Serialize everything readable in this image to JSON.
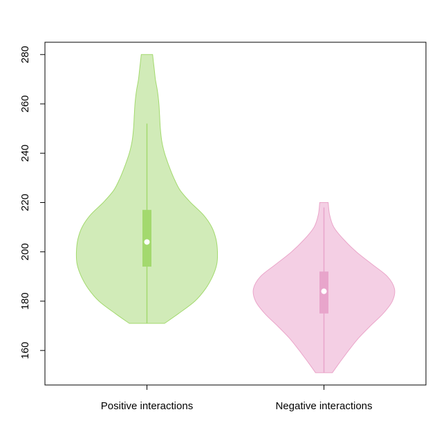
{
  "chart_data": {
    "type": "violin",
    "title": "",
    "xlabel": "",
    "ylabel": "",
    "ylim": [
      146,
      285
    ],
    "yticks": [
      160,
      180,
      200,
      220,
      240,
      260,
      280
    ],
    "yticklabels": [
      "160",
      "180",
      "200",
      "220",
      "240",
      "260",
      "280"
    ],
    "grid": false,
    "legend": "none",
    "series": [
      {
        "category": "Positive interactions",
        "fill": "#d1ebb8",
        "stroke": "#a3d96e",
        "box": "#a3d96e",
        "min": 171,
        "q1": 194,
        "median": 204,
        "q3": 217,
        "whisker_low": 171,
        "whisker_high": 252,
        "max": 280,
        "density": [
          [
            171,
            0.25
          ],
          [
            175,
            0.45
          ],
          [
            180,
            0.68
          ],
          [
            185,
            0.83
          ],
          [
            190,
            0.93
          ],
          [
            195,
            0.99
          ],
          [
            200,
            1.0
          ],
          [
            205,
            0.98
          ],
          [
            210,
            0.92
          ],
          [
            215,
            0.8
          ],
          [
            220,
            0.62
          ],
          [
            225,
            0.47
          ],
          [
            230,
            0.38
          ],
          [
            235,
            0.31
          ],
          [
            240,
            0.25
          ],
          [
            245,
            0.21
          ],
          [
            250,
            0.19
          ],
          [
            255,
            0.18
          ],
          [
            260,
            0.17
          ],
          [
            265,
            0.15
          ],
          [
            270,
            0.12
          ],
          [
            275,
            0.1
          ],
          [
            280,
            0.08
          ]
        ]
      },
      {
        "category": "Negative interactions",
        "fill": "#f4cfe4",
        "stroke": "#eaa5c9",
        "box": "#e8a5cb",
        "min": 151,
        "q1": 175,
        "median": 184,
        "q3": 192,
        "whisker_low": 151,
        "whisker_high": 218,
        "max": 220,
        "density": [
          [
            151,
            0.12
          ],
          [
            155,
            0.22
          ],
          [
            160,
            0.35
          ],
          [
            165,
            0.49
          ],
          [
            170,
            0.66
          ],
          [
            175,
            0.84
          ],
          [
            180,
            0.97
          ],
          [
            185,
            1.0
          ],
          [
            190,
            0.9
          ],
          [
            195,
            0.68
          ],
          [
            200,
            0.46
          ],
          [
            205,
            0.28
          ],
          [
            210,
            0.14
          ],
          [
            215,
            0.08
          ],
          [
            220,
            0.06
          ]
        ]
      }
    ]
  }
}
